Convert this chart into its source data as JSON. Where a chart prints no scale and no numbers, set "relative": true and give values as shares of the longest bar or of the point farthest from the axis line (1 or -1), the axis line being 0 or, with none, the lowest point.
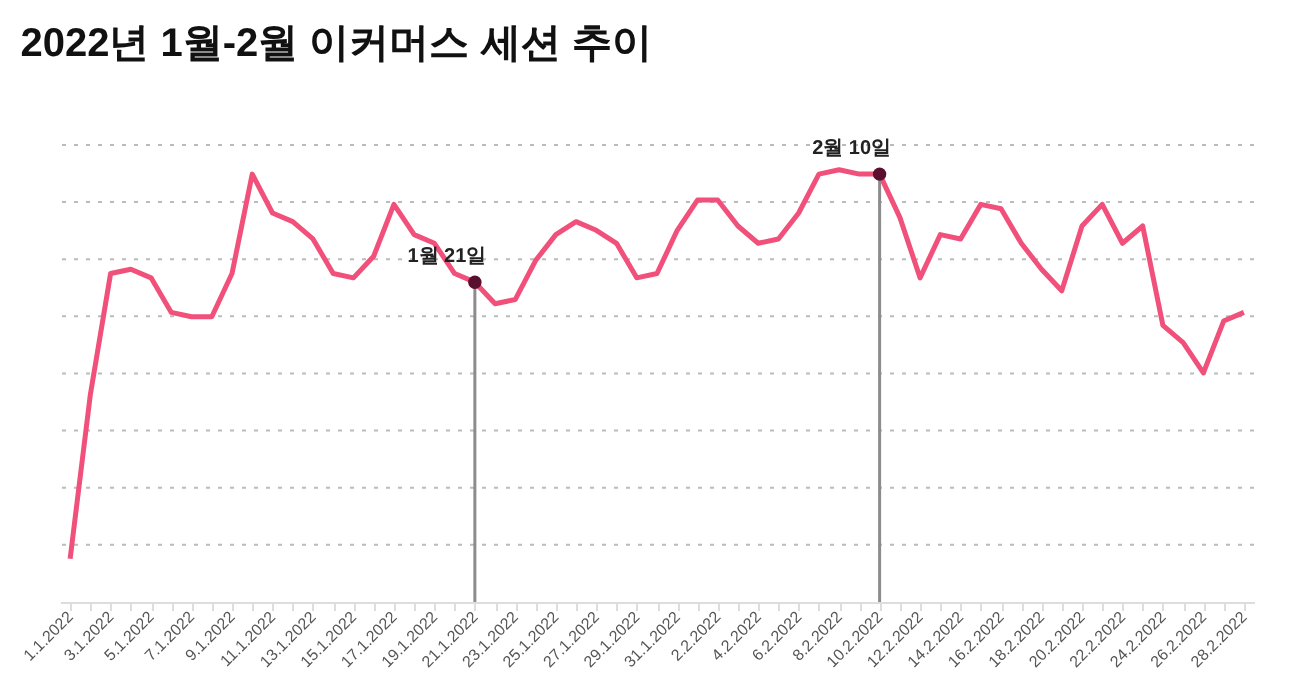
{
  "chart_data": {
    "type": "line",
    "title": "2022년 1월-2월 이커머스 세션 추이",
    "relative": true,
    "grid": "y",
    "categories": [
      "1.1.2022",
      null,
      "3.1.2022",
      null,
      "5.1.2022",
      null,
      "7.1.2022",
      null,
      "9.1.2022",
      null,
      "11.1.2022",
      null,
      "13.1.2022",
      null,
      "15.1.2022",
      null,
      "17.1.2022",
      null,
      "19.1.2022",
      null,
      "21.1.2022",
      null,
      "23.1.2022",
      null,
      "25.1.2022",
      null,
      "27.1.2022",
      null,
      "29.1.2022",
      null,
      "31.1.2022",
      null,
      "2.2.2022",
      null,
      "4.2.2022",
      null,
      "6.2.2022",
      null,
      "8.2.2022",
      null,
      "10.2.2022",
      null,
      "12.2.2022",
      null,
      "14.2.2022",
      null,
      "16.2.2022",
      null,
      "18.2.2022",
      null,
      "20.2.2022",
      null,
      "22.2.2022",
      null,
      "24.2.2022",
      null,
      "26.2.2022",
      null,
      "28.2.2022"
    ],
    "series": [
      {
        "color": "#f0507a",
        "values": [
          0.1,
          0.48,
          0.76,
          0.77,
          0.75,
          0.67,
          0.66,
          0.66,
          0.76,
          0.99,
          0.9,
          0.88,
          0.84,
          0.76,
          0.75,
          0.8,
          0.92,
          0.85,
          0.83,
          0.76,
          0.74,
          0.69,
          0.7,
          0.79,
          0.85,
          0.88,
          0.86,
          0.83,
          0.75,
          0.76,
          0.86,
          0.93,
          0.93,
          0.87,
          0.83,
          0.84,
          0.9,
          0.99,
          1.0,
          0.99,
          0.99,
          0.89,
          0.75,
          0.85,
          0.84,
          0.92,
          0.91,
          0.83,
          0.77,
          0.72,
          0.87,
          0.92,
          0.83,
          0.87,
          0.64,
          0.6,
          0.53,
          0.65,
          0.67
        ]
      }
    ],
    "ref_lines": [
      {
        "axis": "x",
        "value": "21.1.2022",
        "label": "1월 21일",
        "color": "#8c8c8c"
      },
      {
        "axis": "x",
        "value": "10.2.2022",
        "label": "2월 10일",
        "color": "#8c8c8c"
      }
    ]
  }
}
